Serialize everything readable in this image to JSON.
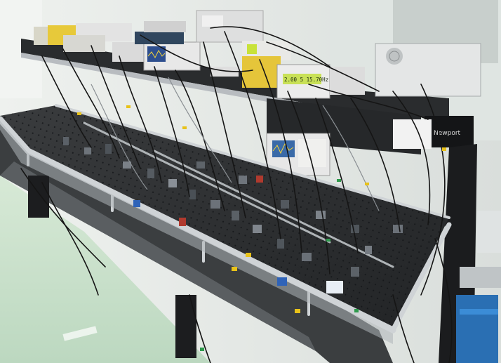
{
  "photo": {
    "colors": {
      "floor": "#cde3cf",
      "wall": "#e8ece8",
      "table_top": "#2b2d2f",
      "frame": "#c9cdd0",
      "table_side": "#3a3d3f",
      "cable": "#1a1a1a",
      "yellow_tag": "#e8c21a",
      "green_tag": "#2e9a4c",
      "blue_bin": "#2a7fc8",
      "supply_green": "#a9d14a",
      "instrument_white": "#e6e6e6"
    }
  },
  "instruments": {
    "power_supply_display": "2.00 5 15.70Hz",
    "brand_label": "Newport"
  }
}
